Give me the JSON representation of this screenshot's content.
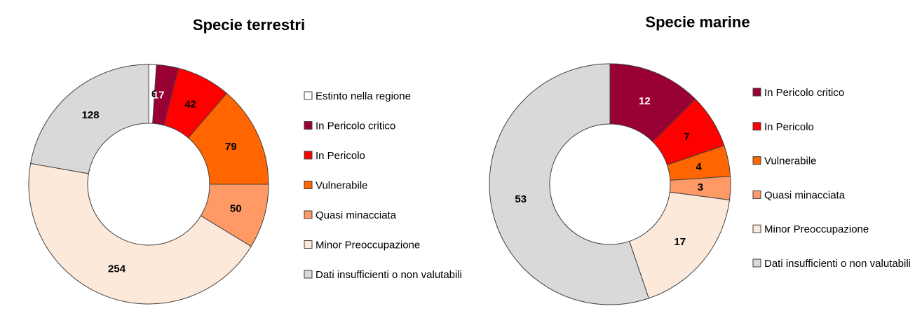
{
  "chart_data": [
    {
      "type": "pie",
      "title": "Specie terrestri",
      "categories": [
        "Estinto nella regione",
        "In Pericolo critico",
        "In Pericolo",
        "Vulnerabile",
        "Quasi minacciata",
        "Minor Preoccupazione",
        "Dati insufficienti o non valutabili"
      ],
      "values": [
        6,
        17,
        42,
        79,
        50,
        254,
        128
      ],
      "labels": [
        "6",
        "17",
        "42",
        "79",
        "50",
        "254",
        "128"
      ],
      "colors": [
        "#FFFFFF",
        "#990033",
        "#FF0000",
        "#FF6600",
        "#FF9966",
        "#FDE9D9",
        "#D9D9D9"
      ],
      "label_colors": [
        "#000000",
        "#FFFFFF",
        "#000000",
        "#000000",
        "#000000",
        "#000000",
        "#000000"
      ],
      "donut": true,
      "legend": "right"
    },
    {
      "type": "pie",
      "title": "Specie marine",
      "categories": [
        "In Pericolo critico",
        "In Pericolo",
        "Vulnerabile",
        "Quasi minacciata",
        "Minor Preoccupazione",
        "Dati insufficienti o non valutabili"
      ],
      "values": [
        12,
        7,
        4,
        3,
        17,
        53
      ],
      "labels": [
        "12",
        "7",
        "4",
        "3",
        "17",
        "53"
      ],
      "colors": [
        "#990033",
        "#FF0000",
        "#FF6600",
        "#FF9966",
        "#FDE9D9",
        "#D9D9D9"
      ],
      "label_colors": [
        "#FFFFFF",
        "#000000",
        "#000000",
        "#000000",
        "#000000",
        "#000000"
      ],
      "donut": true,
      "legend": "right"
    }
  ]
}
